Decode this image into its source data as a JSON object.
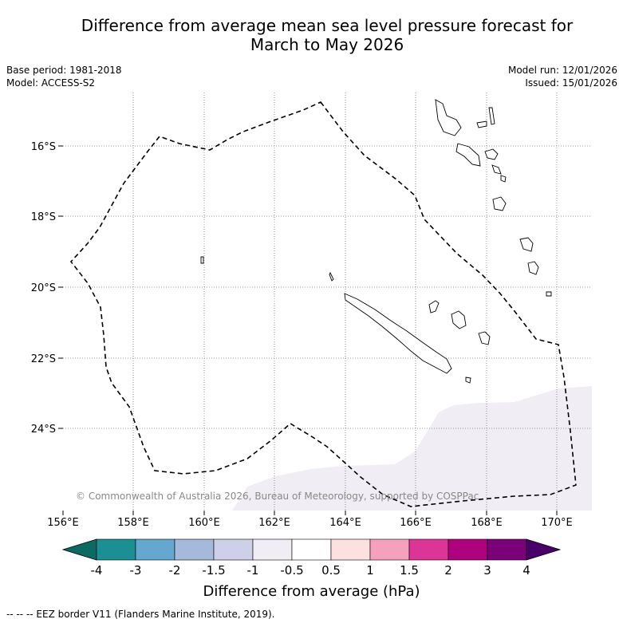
{
  "title_line1": "Difference from average mean sea level pressure forecast for",
  "title_line2": "March to May 2026",
  "base_period": "Base period: 1981-2018",
  "model": "Model: ACCESS-S2",
  "model_run": "Model run: 12/01/2026",
  "issued": "Issued: 15/01/2026",
  "copyright": "© Commonwealth of Australia 2026, Bureau of Meteorology, supported by COSPPac",
  "lat_labels": [
    "16°S",
    "18°S",
    "20°S",
    "22°S",
    "24°S"
  ],
  "lon_labels": [
    "156°E",
    "158°E",
    "160°E",
    "162°E",
    "164°E",
    "166°E",
    "168°E",
    "170°E"
  ],
  "colorbar": {
    "ticks": [
      "-4",
      "-3",
      "-2",
      "-1.5",
      "-1",
      "-0.5",
      "0.5",
      "1",
      "1.5",
      "2",
      "3",
      "4"
    ],
    "colors": [
      "#1a8f94",
      "#64a8d0",
      "#a5b9da",
      "#cdd0e6",
      "#f0eef4",
      "#ffffff",
      "#fde0e0",
      "#f5a0bd",
      "#dd3497",
      "#ae017e",
      "#7a0177"
    ],
    "under_color": "#0b6b63",
    "over_color": "#49006a",
    "label": "Difference from average (hPa)"
  },
  "legend_footer": "--  --  -- EEZ border V11 (Flanders Marine Institute, 2019).",
  "region_colors": {
    "anomaly_fill": "#f0eef4",
    "eez_line": "#000000",
    "grid_line": "#777777"
  }
}
